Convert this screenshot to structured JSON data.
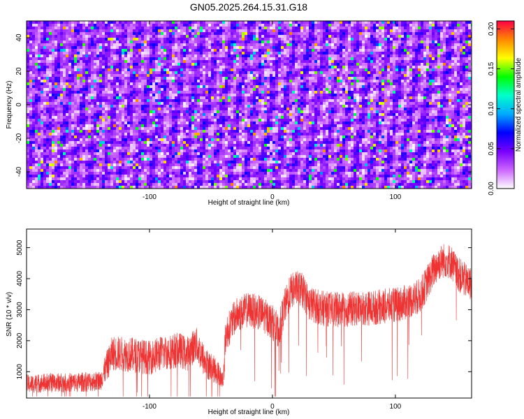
{
  "title": "GN05.2025.264.15.31.G18",
  "chart_data": [
    {
      "type": "heatmap",
      "xlabel": "Height of straight line (km)",
      "ylabel": "Frequency (Hz)",
      "xlim": [
        -200,
        162
      ],
      "ylim": [
        -50,
        50
      ],
      "xticks": [
        -100,
        0,
        100
      ],
      "yticks": [
        -40,
        -20,
        0,
        20,
        40
      ],
      "colorbar": {
        "label": "Normalized spectral amplitude",
        "range": [
          0.0,
          0.21
        ],
        "ticks": [
          0.0,
          0.05,
          0.1,
          0.15,
          0.2
        ],
        "tick_labels": [
          "0.00",
          "0.05",
          "0.10",
          "0.15",
          "0.20"
        ],
        "colors": [
          "#ffffff",
          "#cc66ff",
          "#7700ff",
          "#0000ff",
          "#00aaff",
          "#00ffcc",
          "#00ff00",
          "#ffff00",
          "#ff8800",
          "#ff0044"
        ]
      },
      "background_level": 0.035,
      "peak_level": 0.13
    },
    {
      "type": "line",
      "xlabel": "Height of straight line (km)",
      "ylabel": "SNR (10 * v/v)",
      "xlim": [
        -200,
        162
      ],
      "ylim": [
        150,
        5600
      ],
      "xticks": [
        -100,
        0,
        100
      ],
      "yticks": [
        1000,
        2000,
        3000,
        4000,
        5000
      ],
      "color": "#ee3333",
      "trend_x": [
        -200,
        -180,
        -160,
        -140,
        -138,
        -130,
        -115,
        -100,
        -90,
        -75,
        -70,
        -62,
        -55,
        -45,
        -40,
        -38,
        -30,
        -20,
        -10,
        0,
        5,
        10,
        15,
        20,
        25,
        30,
        40,
        50,
        60,
        70,
        80,
        90,
        100,
        110,
        120,
        125,
        130,
        135,
        140,
        145,
        150,
        155,
        162
      ],
      "trend_y": [
        600,
        650,
        650,
        700,
        900,
        1600,
        1550,
        1450,
        1600,
        1700,
        1550,
        1900,
        1300,
        1000,
        700,
        2200,
        2800,
        3000,
        2900,
        2600,
        2300,
        3100,
        3600,
        3700,
        3600,
        3200,
        3050,
        3000,
        3000,
        3050,
        3050,
        3100,
        3150,
        3250,
        3450,
        3800,
        4200,
        4500,
        4600,
        4550,
        4200,
        4000,
        3800
      ],
      "noise_amplitude": 450
    }
  ]
}
